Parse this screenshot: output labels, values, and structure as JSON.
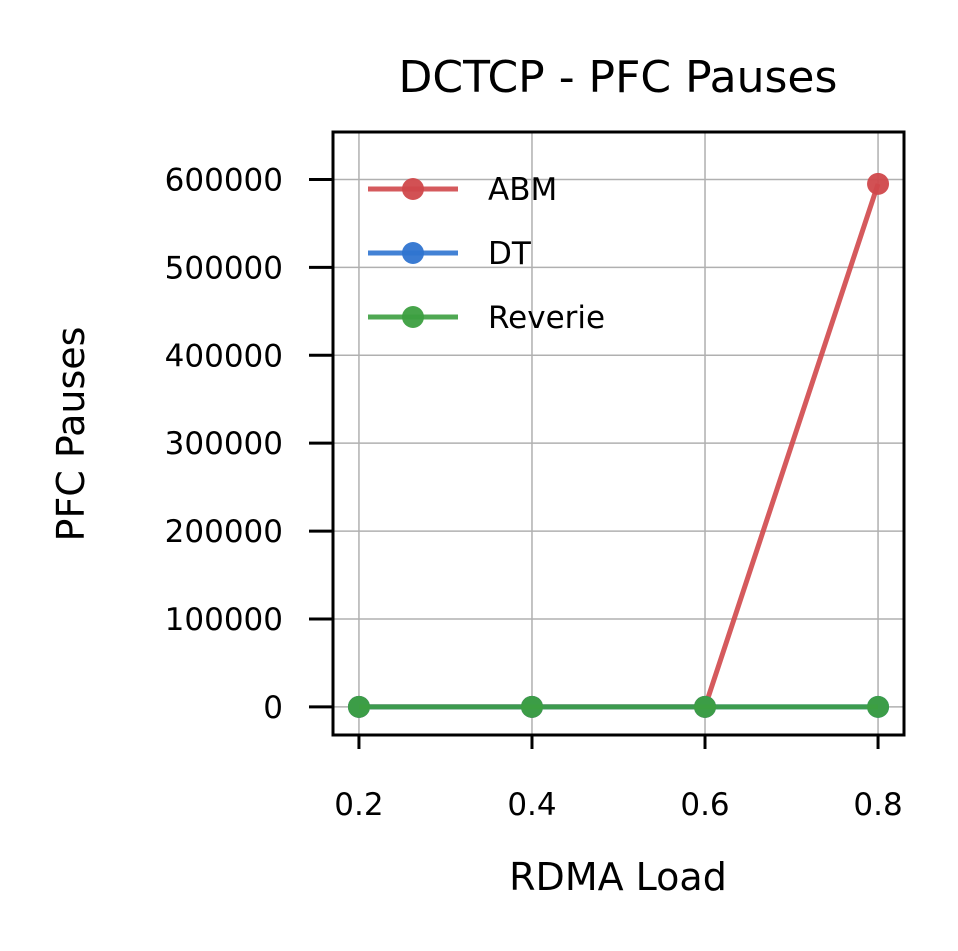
{
  "colors": {
    "ABM": "#d0484b",
    "DT": "#2f74d0",
    "Reverie": "#3c9f40",
    "grid": "#b0b0b0",
    "axis": "#000000"
  },
  "chart_data": {
    "type": "line",
    "title": "DCTCP - PFC Pauses",
    "xlabel": "RDMA Load",
    "ylabel": "PFC Pauses",
    "x": [
      0.2,
      0.4,
      0.6,
      0.8
    ],
    "x_tick_labels": [
      "0.2",
      "0.4",
      "0.6",
      "0.8"
    ],
    "y_ticks": [
      0,
      100000,
      200000,
      300000,
      400000,
      500000,
      600000
    ],
    "y_tick_labels": [
      "0",
      "100000",
      "200000",
      "300000",
      "400000",
      "500000",
      "600000"
    ],
    "xlim": [
      0.17,
      0.83
    ],
    "ylim": [
      -32000,
      654000
    ],
    "grid": true,
    "legend_position": "top-left",
    "series": [
      {
        "name": "ABM",
        "color_key": "ABM",
        "values": [
          0,
          0,
          0,
          595000
        ]
      },
      {
        "name": "DT",
        "color_key": "DT",
        "values": [
          0,
          0,
          0,
          0
        ]
      },
      {
        "name": "Reverie",
        "color_key": "Reverie",
        "values": [
          0,
          0,
          0,
          0
        ]
      }
    ]
  }
}
